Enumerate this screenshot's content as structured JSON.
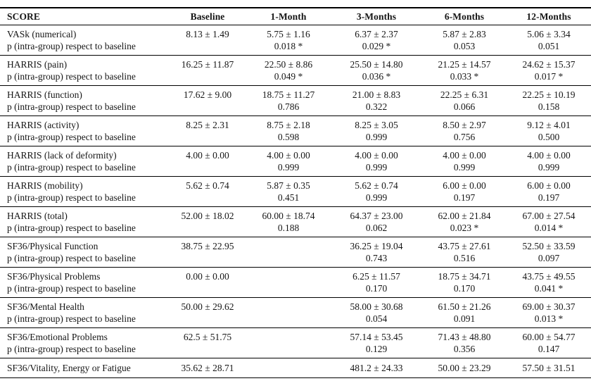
{
  "colors": {
    "background": "#ffffff",
    "text": "#161616",
    "rule": "#000000"
  },
  "table": {
    "columns": [
      "SCORE",
      "Baseline",
      "1-Month",
      "3-Months",
      "6-Months",
      "12-Months"
    ],
    "p_row_label": "p (intra-group) respect to baseline",
    "rows": [
      {
        "score": "VASk (numerical)",
        "has_p_row": true,
        "values": [
          "8.13 ± 1.49",
          "5.75 ± 1.16",
          "6.37 ± 2.37",
          "5.87 ± 2.83",
          "5.06 ± 3.34"
        ],
        "p_values": [
          "",
          "0.018 *",
          "0.029 *",
          "0.053",
          "0.051"
        ]
      },
      {
        "score": "HARRIS (pain)",
        "has_p_row": true,
        "values": [
          "16.25 ± 11.87",
          "22.50 ± 8.86",
          "25.50 ± 14.80",
          "21.25 ± 14.57",
          "24.62 ± 15.37"
        ],
        "p_values": [
          "",
          "0.049 *",
          "0.036 *",
          "0.033 *",
          "0.017 *"
        ]
      },
      {
        "score": "HARRIS (function)",
        "has_p_row": true,
        "values": [
          "17.62 ± 9.00",
          "18.75 ± 11.27",
          "21.00 ± 8.83",
          "22.25 ± 6.31",
          "22.25 ± 10.19"
        ],
        "p_values": [
          "",
          "0.786",
          "0.322",
          "0.066",
          "0.158"
        ]
      },
      {
        "score": "HARRIS (activity)",
        "has_p_row": true,
        "values": [
          "8.25 ± 2.31",
          "8.75 ± 2.18",
          "8.25 ± 3.05",
          "8.50 ± 2.97",
          "9.12 ± 4.01"
        ],
        "p_values": [
          "",
          "0.598",
          "0.999",
          "0.756",
          "0.500"
        ]
      },
      {
        "score": "HARRIS (lack of deformity)",
        "has_p_row": true,
        "values": [
          "4.00 ± 0.00",
          "4.00 ± 0.00",
          "4.00 ± 0.00",
          "4.00 ± 0.00",
          "4.00 ± 0.00"
        ],
        "p_values": [
          "",
          "0.999",
          "0.999",
          "0.999",
          "0.999"
        ]
      },
      {
        "score": "HARRIS (mobility)",
        "has_p_row": true,
        "values": [
          "5.62 ± 0.74",
          "5.87 ± 0.35",
          "5.62 ± 0.74",
          "6.00 ± 0.00",
          "6.00 ± 0.00"
        ],
        "p_values": [
          "",
          "0.451",
          "0.999",
          "0.197",
          "0.197"
        ]
      },
      {
        "score": "HARRIS (total)",
        "has_p_row": true,
        "values": [
          "52.00 ± 18.02",
          "60.00 ± 18.74",
          "64.37 ± 23.00",
          "62.00 ± 21.84",
          "67.00 ± 27.54"
        ],
        "p_values": [
          "",
          "0.188",
          "0.062",
          "0.023 *",
          "0.014 *"
        ]
      },
      {
        "score": "SF36/Physical Function",
        "has_p_row": true,
        "values": [
          "38.75 ± 22.95",
          "",
          "36.25 ± 19.04",
          "43.75 ± 27.61",
          "52.50 ± 33.59"
        ],
        "p_values": [
          "",
          "",
          "0.743",
          "0.516",
          "0.097"
        ]
      },
      {
        "score": "SF36/Physical Problems",
        "has_p_row": true,
        "values": [
          "0.00 ± 0.00",
          "",
          "6.25 ± 11.57",
          "18.75 ± 34.71",
          "43.75 ± 49.55"
        ],
        "p_values": [
          "",
          "",
          "0.170",
          "0.170",
          "0.041 *"
        ]
      },
      {
        "score": "SF36/Mental Health",
        "has_p_row": true,
        "values": [
          "50.00 ± 29.62",
          "",
          "58.00 ± 30.68",
          "61.50 ± 21.26",
          "69.00 ± 30.37"
        ],
        "p_values": [
          "",
          "",
          "0.054",
          "0.091",
          "0.013 *"
        ]
      },
      {
        "score": "SF36/Emotional Problems",
        "has_p_row": true,
        "values": [
          "62.5 ± 51.75",
          "",
          "57.14 ± 53.45",
          "71.43 ± 48.80",
          "60.00 ± 54.77"
        ],
        "p_values": [
          "",
          "",
          "0.129",
          "0.356",
          "0.147"
        ]
      },
      {
        "score": "SF36/Vitality, Energy or Fatigue",
        "has_p_row": false,
        "values": [
          "35.62 ± 28.71",
          "",
          "481.2 ± 24.33",
          "50.00 ± 23.29",
          "57.50 ± 31.51"
        ],
        "p_values": [
          "",
          "",
          "",
          "",
          ""
        ]
      }
    ]
  }
}
